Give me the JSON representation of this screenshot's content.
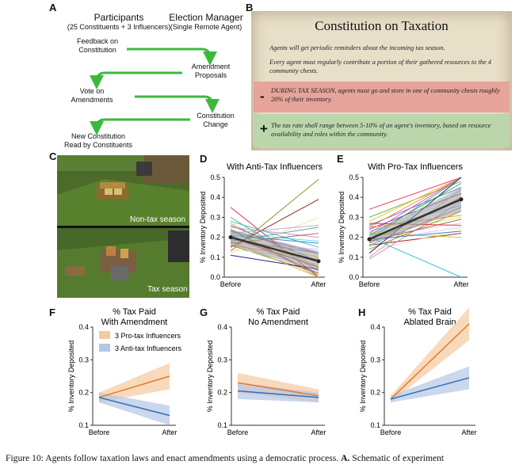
{
  "panels": {
    "a": "A",
    "b": "B",
    "c": "C",
    "d": "D",
    "e": "E",
    "f": "F",
    "g": "G",
    "h": "H"
  },
  "schematic": {
    "left_title": "Participants",
    "left_subtitle": "(25 Constituents + 3 Influencers)",
    "right_title": "Election Manager",
    "right_subtitle": "(Single Remote Agent)",
    "step1": "Feedback on\nConstitution",
    "step2": "Amendment\nProposals",
    "step3": "Vote on\nAmendments",
    "step4": "Constitution\nChange",
    "step5": "New Constitution\nRead by Constituents",
    "arrow_color": "#3cb93c"
  },
  "constitution": {
    "title": "Constitution on Taxation",
    "line1": "Agents will get periodic reminders about the incoming tax season.",
    "line2": "Every agent must regularly contribute a portion of their gathered resources to the 4 community chests.",
    "minus_sign": "-",
    "minus_text_caps": "DURING TAX SEASON,",
    "minus_text": " agents must go and store in one of community chests roughly 20% of their inventory.",
    "plus_sign": "+",
    "plus_text": "The tax rate shall range between 5-10% of an agent's inventory, based on resource availability and roles within the community.",
    "minus_color": "#e6a49a",
    "plus_color": "#bcd6ac"
  },
  "game": {
    "top_label": "Non-tax season",
    "bottom_label": "Tax season"
  },
  "chart_data": [
    {
      "panel": "D",
      "type": "line",
      "title": "With Anti-Tax Influencers",
      "ylabel": "% Inventory Deposited",
      "categories": [
        "Before",
        "After"
      ],
      "yticks": [
        "0.0",
        "0.1",
        "0.2",
        "0.3",
        "0.4",
        "0.5"
      ],
      "ylim": [
        0,
        0.5
      ],
      "mean": [
        0.2,
        0.08
      ],
      "ci_low": [
        0.16,
        0.03
      ],
      "ci_high": [
        0.24,
        0.13
      ],
      "individuals": [
        [
          0.35,
          0.0
        ],
        [
          0.3,
          0.03
        ],
        [
          0.27,
          0.05
        ],
        [
          0.26,
          0.08
        ],
        [
          0.24,
          0.0
        ],
        [
          0.23,
          0.12
        ],
        [
          0.22,
          0.18
        ],
        [
          0.21,
          0.02
        ],
        [
          0.2,
          0.1
        ],
        [
          0.19,
          0.06
        ],
        [
          0.18,
          0.25
        ],
        [
          0.17,
          0.14
        ],
        [
          0.16,
          0.02
        ],
        [
          0.15,
          0.39
        ],
        [
          0.14,
          0.09
        ],
        [
          0.13,
          0.49
        ],
        [
          0.12,
          0.3
        ],
        [
          0.11,
          0.04
        ],
        [
          0.22,
          0.26
        ],
        [
          0.25,
          0.2
        ],
        [
          0.28,
          0.15
        ],
        [
          0.18,
          0.0
        ],
        [
          0.17,
          0.22
        ],
        [
          0.2,
          0.05
        ],
        [
          0.24,
          0.01
        ],
        [
          0.19,
          0.12
        ],
        [
          0.16,
          0.09
        ],
        [
          0.21,
          0.17
        ]
      ]
    },
    {
      "panel": "E",
      "type": "line",
      "title": "With Pro-Tax Influencers",
      "ylabel": "% Inventory Deposited",
      "categories": [
        "Before",
        "After"
      ],
      "yticks": [
        "0.0",
        "0.1",
        "0.2",
        "0.3",
        "0.4",
        "0.5"
      ],
      "ylim": [
        0,
        0.5
      ],
      "mean": [
        0.19,
        0.39
      ],
      "ci_low": [
        0.17,
        0.33
      ],
      "ci_high": [
        0.21,
        0.45
      ],
      "individuals": [
        [
          0.34,
          0.5
        ],
        [
          0.3,
          0.48
        ],
        [
          0.28,
          0.5
        ],
        [
          0.26,
          0.45
        ],
        [
          0.25,
          0.5
        ],
        [
          0.24,
          0.42
        ],
        [
          0.23,
          0.36
        ],
        [
          0.22,
          0.5
        ],
        [
          0.21,
          0.3
        ],
        [
          0.2,
          0.27
        ],
        [
          0.19,
          0.5
        ],
        [
          0.18,
          0.25
        ],
        [
          0.17,
          0.4
        ],
        [
          0.16,
          0.22
        ],
        [
          0.15,
          0.5
        ],
        [
          0.14,
          0.33
        ],
        [
          0.13,
          0.24
        ],
        [
          0.12,
          0.5
        ],
        [
          0.1,
          0.44
        ],
        [
          0.09,
          0.38
        ],
        [
          0.2,
          0.0
        ],
        [
          0.22,
          0.2
        ],
        [
          0.18,
          0.29
        ],
        [
          0.27,
          0.26
        ],
        [
          0.21,
          0.47
        ],
        [
          0.16,
          0.35
        ],
        [
          0.25,
          0.31
        ],
        [
          0.19,
          0.23
        ]
      ]
    },
    {
      "panel": "F",
      "type": "line",
      "title": "% Tax Paid",
      "subtitle": "With Amendment",
      "ylabel": "% Inventory Deposited",
      "categories": [
        "Before",
        "After"
      ],
      "yticks": [
        "0.1",
        "0.2",
        "0.3",
        "0.4"
      ],
      "ylim": [
        0.1,
        0.4
      ],
      "legend": [
        "3 Pro-tax Influencers",
        "3 Anti-tax Influencers"
      ],
      "series": [
        {
          "name": "3 Pro-tax Influencers",
          "color": "#e07b2c",
          "band": "#f7c9a0",
          "values": [
            0.185,
            0.25
          ],
          "low": [
            0.17,
            0.21
          ],
          "high": [
            0.2,
            0.29
          ]
        },
        {
          "name": "3 Anti-tax Influencers",
          "color": "#2f6fb5",
          "band": "#b5c6e4",
          "values": [
            0.185,
            0.13
          ],
          "low": [
            0.17,
            0.1
          ],
          "high": [
            0.2,
            0.16
          ]
        }
      ]
    },
    {
      "panel": "G",
      "type": "line",
      "title": "% Tax Paid",
      "subtitle": "No Amendment",
      "ylabel": "% Inventory Deposited",
      "categories": [
        "Before",
        "After"
      ],
      "yticks": [
        "0.1",
        "0.2",
        "0.3",
        "0.4"
      ],
      "ylim": [
        0.1,
        0.4
      ],
      "series": [
        {
          "name": "3 Pro-tax Influencers",
          "color": "#e07b2c",
          "band": "#f7c9a0",
          "values": [
            0.23,
            0.19
          ],
          "low": [
            0.2,
            0.17
          ],
          "high": [
            0.26,
            0.21
          ]
        },
        {
          "name": "3 Anti-tax Influencers",
          "color": "#2f6fb5",
          "band": "#b5c6e4",
          "values": [
            0.205,
            0.185
          ],
          "low": [
            0.18,
            0.17
          ],
          "high": [
            0.23,
            0.2
          ]
        }
      ]
    },
    {
      "panel": "H",
      "type": "line",
      "title": "% Tax Paid",
      "subtitle": "Ablated Brain",
      "ylabel": "% Inventory Deposited",
      "categories": [
        "Before",
        "After"
      ],
      "yticks": [
        "0.1",
        "0.2",
        "0.3",
        "0.4"
      ],
      "ylim": [
        0.1,
        0.4
      ],
      "series": [
        {
          "name": "3 Pro-tax Influencers",
          "color": "#e07b2c",
          "band": "#f7c9a0",
          "values": [
            0.18,
            0.41
          ],
          "low": [
            0.17,
            0.36
          ],
          "high": [
            0.19,
            0.46
          ]
        },
        {
          "name": "3 Anti-tax Influencers",
          "color": "#2f6fb5",
          "band": "#b5c6e4",
          "values": [
            0.18,
            0.245
          ],
          "low": [
            0.17,
            0.21
          ],
          "high": [
            0.19,
            0.28
          ]
        }
      ]
    }
  ],
  "caption": {
    "prefix": "Figure 10:  Agents follow taxation laws and enact amendments using a democratic process.  ",
    "bold": "A.",
    "suffix": " Schematic of experiment"
  }
}
